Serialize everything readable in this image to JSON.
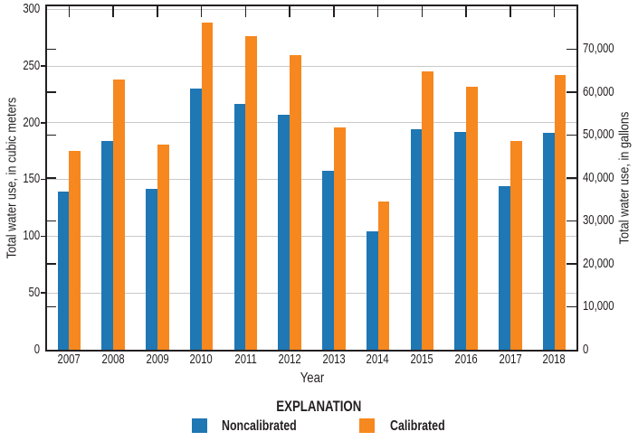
{
  "chart_data": {
    "type": "bar",
    "subtype": "grouped-vertical-bar",
    "categories": [
      "2007",
      "2008",
      "2009",
      "2010",
      "2011",
      "2012",
      "2013",
      "2014",
      "2015",
      "2016",
      "2017",
      "2018"
    ],
    "series": [
      {
        "name": "Noncalibrated",
        "color": "#1f77b4",
        "values": [
          139,
          184,
          142,
          230,
          217,
          207,
          158,
          104,
          194,
          192,
          144,
          191
        ]
      },
      {
        "name": "Calibrated",
        "color": "#f6881f",
        "values": [
          175,
          238,
          181,
          288,
          276,
          260,
          196,
          131,
          245,
          232,
          184,
          242
        ]
      }
    ],
    "xlabel": "Year",
    "left_axis": {
      "label": "Total water use, in cubic meters",
      "min": 0,
      "max": 300,
      "major_ticks": [
        0,
        50,
        100,
        150,
        200,
        250,
        300
      ],
      "tick_labels": [
        "0",
        "50",
        "100",
        "150",
        "200",
        "250",
        "300"
      ],
      "grid": true
    },
    "right_axis": {
      "label": "Total water use, in gallons",
      "unit_conversion_gallons_per_cubic_meter": 264.172,
      "major_ticks": [
        0,
        10000,
        20000,
        30000,
        40000,
        50000,
        60000,
        70000
      ],
      "tick_labels": [
        "0",
        "10,000",
        "20,000",
        "30,000",
        "40,000",
        "50,000",
        "60,000",
        "70,000"
      ],
      "grid": false
    },
    "legend": {
      "position": "bottom-center",
      "title": "EXPLANATION",
      "entries": [
        {
          "label": "Noncalibrated",
          "color": "#1f77b4"
        },
        {
          "label": "Calibrated",
          "color": "#f6881f"
        }
      ]
    },
    "colors": {
      "grid": "#c9c9c9",
      "frame": "#231f20",
      "text": "#231f20",
      "background": "#ffffff"
    }
  }
}
